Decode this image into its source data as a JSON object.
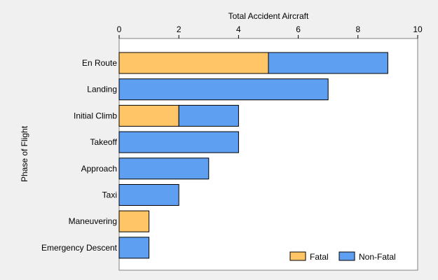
{
  "chart_data": {
    "type": "bar",
    "orientation": "horizontal",
    "stacked": true,
    "xlabel": "Total Accident Aircraft",
    "ylabel": "Phase of Flight",
    "xlim": [
      0,
      10
    ],
    "xticks": [
      0,
      2,
      4,
      6,
      8,
      10
    ],
    "x_axis_position": "top",
    "grid": false,
    "legend_position": "bottom-right",
    "categories": [
      "En Route",
      "Landing",
      "Initial Climb",
      "Takeoff",
      "Approach",
      "Taxi",
      "Maneuvering",
      "Emergency Descent"
    ],
    "series": [
      {
        "name": "Fatal",
        "color": "#ffc566",
        "values": [
          5,
          0,
          2,
          0,
          0,
          0,
          1,
          0
        ]
      },
      {
        "name": "Non-Fatal",
        "color": "#5f9ff2",
        "values": [
          4,
          7,
          2,
          4,
          3,
          2,
          0,
          1
        ]
      }
    ]
  }
}
